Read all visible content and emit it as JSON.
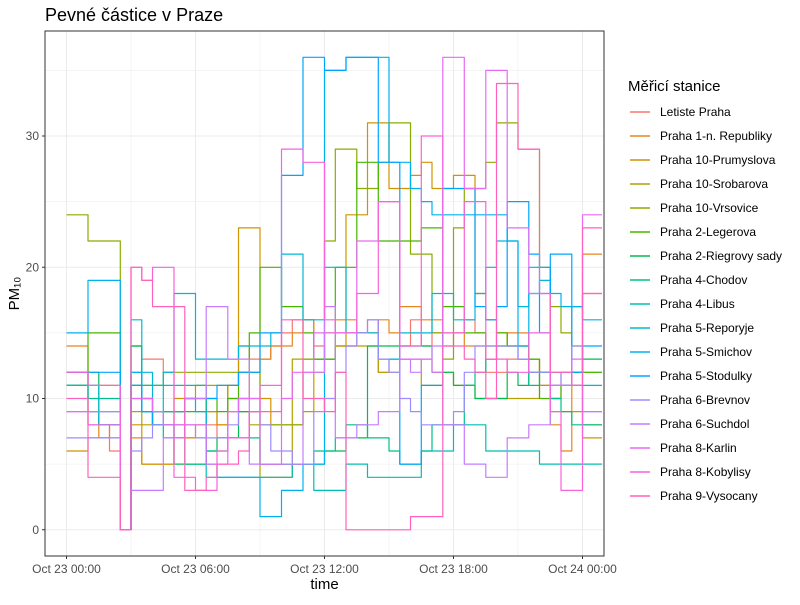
{
  "chart_data": {
    "type": "line",
    "title": "Pevné částice v Praze",
    "xlabel": "time",
    "ylabel": "PM₁₀",
    "legend_title": "Měřicí stanice",
    "legend_position": "right",
    "grid": true,
    "x_range": [
      "2020-10-22 23:00",
      "2020-10-24 01:00"
    ],
    "ylim": [
      -2,
      38
    ],
    "y_ticks": [
      0,
      10,
      20,
      30
    ],
    "x_ticks": [
      {
        "value": "2020-10-23 00:00",
        "label": "Oct 23 00:00"
      },
      {
        "value": "2020-10-23 06:00",
        "label": "Oct 23 06:00"
      },
      {
        "value": "2020-10-23 12:00",
        "label": "Oct 23 12:00"
      },
      {
        "value": "2020-10-23 18:00",
        "label": "Oct 23 18:00"
      },
      {
        "value": "2020-10-24 00:00",
        "label": "Oct 24 00:00"
      }
    ],
    "x": [
      "2020-10-23 00:00",
      "2020-10-23 00:30",
      "2020-10-23 01:00",
      "2020-10-23 01:30",
      "2020-10-23 02:00",
      "2020-10-23 02:30",
      "2020-10-23 03:00",
      "2020-10-23 03:30",
      "2020-10-23 04:00",
      "2020-10-23 04:30",
      "2020-10-23 05:00",
      "2020-10-23 05:30",
      "2020-10-23 06:00",
      "2020-10-23 06:30",
      "2020-10-23 07:00",
      "2020-10-23 07:30",
      "2020-10-23 08:00",
      "2020-10-23 08:30",
      "2020-10-23 09:00",
      "2020-10-23 09:30",
      "2020-10-23 10:00",
      "2020-10-23 10:30",
      "2020-10-23 11:00",
      "2020-10-23 11:30",
      "2020-10-23 12:00",
      "2020-10-23 12:30",
      "2020-10-23 13:00",
      "2020-10-23 13:30",
      "2020-10-23 14:00",
      "2020-10-23 14:30",
      "2020-10-23 15:00",
      "2020-10-23 15:30",
      "2020-10-23 16:00",
      "2020-10-23 16:30",
      "2020-10-23 17:00",
      "2020-10-23 17:30",
      "2020-10-23 18:00",
      "2020-10-23 18:30",
      "2020-10-23 19:00",
      "2020-10-23 19:30",
      "2020-10-23 20:00",
      "2020-10-23 20:30",
      "2020-10-23 21:00",
      "2020-10-23 21:30",
      "2020-10-23 22:00",
      "2020-10-23 22:30",
      "2020-10-23 23:00",
      "2020-10-23 23:30",
      "2020-10-24 00:00",
      "2020-10-24 00:30"
    ],
    "series": [
      {
        "name": "Letiste Praha",
        "color": "#F8766D",
        "values": [
          12,
          12,
          8,
          8,
          6,
          0,
          10,
          13,
          13,
          12,
          8,
          7,
          7,
          8,
          7,
          11,
          14,
          13,
          13,
          14,
          15,
          16,
          16,
          14,
          13,
          14,
          14,
          15,
          16,
          12,
          13,
          14,
          16,
          14,
          15,
          14,
          15,
          16,
          15,
          12,
          12,
          13,
          13,
          12,
          11,
          10,
          12,
          17,
          18,
          18
        ]
      },
      {
        "name": "Praha 1-n. Republiky",
        "color": "#E7851E",
        "values": [
          14,
          14,
          9,
          7,
          8,
          0,
          7,
          5,
          5,
          5,
          7,
          7,
          8,
          9,
          8,
          9,
          10,
          12,
          13,
          14,
          14,
          15,
          16,
          13,
          15,
          16,
          16,
          15,
          15,
          16,
          15,
          17,
          17,
          16,
          16,
          15,
          15,
          14,
          14,
          13,
          14,
          15,
          15,
          13,
          12,
          8,
          6,
          12,
          21,
          21
        ]
      },
      {
        "name": "Praha 10-Prumyslova",
        "color": "#D09400",
        "values": [
          6,
          6,
          7,
          7,
          7,
          0,
          8,
          5,
          5,
          5,
          10,
          10,
          10,
          9,
          8,
          11,
          23,
          23,
          10,
          8,
          8,
          8,
          9,
          12,
          13,
          14,
          24,
          24,
          31,
          31,
          26,
          26,
          27,
          28,
          26,
          26,
          27,
          27,
          18,
          16,
          15,
          14,
          14,
          13,
          12,
          9,
          9,
          9,
          7,
          7
        ]
      },
      {
        "name": "Praha 10-Srobarova",
        "color": "#B2A100",
        "values": [
          11,
          11,
          11,
          11,
          11,
          0,
          9,
          8,
          9,
          9,
          9,
          10,
          11,
          11,
          11,
          10,
          9,
          8,
          4,
          4,
          4,
          13,
          13,
          13,
          13,
          14,
          14,
          14,
          14,
          12,
          12,
          13,
          13,
          11,
          11,
          12,
          11,
          11,
          10,
          10,
          10,
          10,
          10,
          10,
          11,
          11,
          11,
          11,
          8,
          8
        ]
      },
      {
        "name": "Praha 10-Vrsovice",
        "color": "#89AC00",
        "values": [
          24,
          24,
          22,
          22,
          22,
          0,
          11,
          11,
          11,
          12,
          12,
          12,
          12,
          12,
          12,
          12,
          12,
          12,
          8,
          8,
          8,
          8,
          13,
          13,
          22,
          29,
          29,
          26,
          26,
          28,
          31,
          31,
          21,
          21,
          15,
          13,
          23,
          26,
          26,
          28,
          31,
          31,
          29,
          29,
          20,
          17,
          15,
          14,
          12,
          12
        ]
      },
      {
        "name": "Praha 2-Legerova",
        "color": "#45B500",
        "values": [
          11,
          11,
          15,
          15,
          15,
          0,
          14,
          10,
          9,
          9,
          9,
          9,
          9,
          10,
          9,
          10,
          12,
          15,
          20,
          20,
          17,
          17,
          15,
          13,
          13,
          20,
          20,
          28,
          28,
          22,
          22,
          22,
          22,
          23,
          23,
          17,
          17,
          15,
          15,
          14,
          15,
          14,
          14,
          13,
          10,
          10,
          11,
          12,
          12,
          12
        ]
      },
      {
        "name": "Praha 2-Riegrovy sady",
        "color": "#00BC51",
        "values": [
          12,
          12,
          12,
          8,
          8,
          0,
          14,
          10,
          8,
          8,
          5,
          5,
          5,
          6,
          7,
          7,
          9,
          9,
          5,
          5,
          5,
          5,
          5,
          5,
          6,
          6,
          7,
          7,
          14,
          14,
          14,
          14,
          14,
          14,
          12,
          12,
          11,
          11,
          10,
          10,
          10,
          12,
          11,
          12,
          12,
          12,
          12,
          12,
          13,
          13
        ]
      },
      {
        "name": "Praha 4-Chodov",
        "color": "#00C087",
        "values": [
          11,
          11,
          10,
          10,
          10,
          0,
          11,
          9,
          8,
          7,
          7,
          5,
          5,
          6,
          6,
          7,
          7,
          7,
          5,
          5,
          5,
          5,
          5,
          6,
          6,
          7,
          8,
          8,
          7,
          7,
          6,
          5,
          5,
          6,
          8,
          8,
          8,
          11,
          12,
          13,
          14,
          14,
          13,
          11,
          12,
          10,
          9,
          8,
          8,
          8
        ]
      },
      {
        "name": "Praha 4-Libus",
        "color": "#00BEB3",
        "values": [
          12,
          12,
          9,
          9,
          9,
          0,
          12,
          11,
          11,
          11,
          11,
          11,
          11,
          4,
          4,
          4,
          4,
          4,
          4,
          4,
          4,
          5,
          5,
          3,
          3,
          3,
          5,
          5,
          4,
          4,
          4,
          4,
          4,
          6,
          6,
          6,
          8,
          8,
          8,
          6,
          6,
          6,
          6,
          6,
          5,
          5,
          5,
          5,
          5,
          5
        ]
      },
      {
        "name": "Praha 5-Reporyje",
        "color": "#00B8D5",
        "values": [
          11,
          11,
          11,
          8,
          8,
          0,
          16,
          12,
          8,
          12,
          18,
          18,
          13,
          13,
          13,
          13,
          14,
          14,
          14,
          15,
          21,
          21,
          16,
          16,
          20,
          20,
          15,
          15,
          15,
          13,
          13,
          15,
          15,
          15,
          18,
          18,
          16,
          16,
          18,
          20,
          22,
          22,
          17,
          18,
          19,
          11,
          11,
          11,
          11,
          11
        ]
      },
      {
        "name": "Praha 5-Smichov",
        "color": "#00B1F0",
        "values": [
          15,
          15,
          19,
          19,
          19,
          0,
          12,
          9,
          9,
          9,
          9,
          10,
          9,
          5,
          4,
          4,
          4,
          4,
          1,
          1,
          3,
          3,
          5,
          5,
          35,
          35,
          36,
          36,
          36,
          36,
          28,
          28,
          26,
          25,
          24,
          24,
          24,
          24,
          24,
          24,
          24,
          22,
          14,
          20,
          20,
          18,
          17,
          17,
          16,
          16
        ]
      },
      {
        "name": "Praha 5-Stodulky",
        "color": "#00A5FF",
        "values": [
          12,
          12,
          12,
          12,
          12,
          0,
          11,
          9,
          8,
          8,
          7,
          10,
          10,
          10,
          11,
          11,
          12,
          12,
          15,
          15,
          27,
          27,
          36,
          36,
          35,
          35,
          36,
          36,
          36,
          28,
          28,
          5,
          5,
          11,
          11,
          26,
          26,
          26,
          17,
          16,
          17,
          25,
          25,
          21,
          15,
          21,
          21,
          12,
          14,
          14
        ]
      },
      {
        "name": "Praha 6-Brevnov",
        "color": "#9B8DFF",
        "values": [
          7,
          7,
          7,
          7,
          7,
          0,
          6,
          7,
          8,
          8,
          8,
          8,
          7,
          7,
          7,
          8,
          10,
          10,
          8,
          6,
          6,
          5,
          5,
          9,
          10,
          12,
          14,
          15,
          16,
          13,
          12,
          10,
          9,
          8,
          8,
          8,
          9,
          12,
          14,
          14,
          14,
          14,
          13,
          12,
          12,
          11,
          12,
          14,
          9,
          9
        ]
      },
      {
        "name": "Praha 6-Suchdol",
        "color": "#C77CFF",
        "values": [
          9,
          9,
          9,
          9,
          9,
          0,
          3,
          3,
          3,
          7,
          7,
          10,
          10,
          17,
          17,
          13,
          13,
          5,
          5,
          5,
          5,
          5,
          12,
          12,
          17,
          7,
          7,
          8,
          8,
          9,
          9,
          13,
          12,
          13,
          14,
          8,
          8,
          5,
          5,
          4,
          4,
          7,
          7,
          8,
          8,
          11,
          11,
          11,
          9,
          9
        ]
      },
      {
        "name": "Praha 8-Karlin",
        "color": "#E76BF3",
        "values": [
          9,
          9,
          8,
          8,
          8,
          0,
          10,
          10,
          9,
          8,
          8,
          8,
          8,
          5,
          5,
          9,
          10,
          10,
          5,
          5,
          10,
          12,
          12,
          15,
          15,
          15,
          15,
          22,
          22,
          25,
          25,
          13,
          13,
          13,
          12,
          36,
          36,
          26,
          26,
          35,
          35,
          23,
          23,
          18,
          18,
          11,
          11,
          13,
          24,
          24
        ]
      },
      {
        "name": "Praha 8-Kobylisy",
        "color": "#F962DD",
        "values": [
          12,
          12,
          11,
          11,
          11,
          0,
          20,
          19,
          20,
          20,
          4,
          4,
          3,
          3,
          6,
          7,
          7,
          9,
          11,
          11,
          29,
          29,
          28,
          28,
          16,
          15,
          15,
          18,
          18,
          25,
          25,
          14,
          14,
          30,
          30,
          15,
          15,
          25,
          25,
          13,
          13,
          12,
          12,
          15,
          15,
          9,
          3,
          3,
          18,
          18
        ]
      },
      {
        "name": "Praha 9-Vysocany",
        "color": "#FF62BC",
        "values": [
          10,
          10,
          4,
          4,
          4,
          0,
          20,
          19,
          17,
          17,
          17,
          3,
          3,
          4,
          5,
          5,
          6,
          9,
          9,
          9,
          16,
          16,
          10,
          10,
          9,
          12,
          0,
          0,
          0,
          0,
          0,
          0,
          1,
          1,
          1,
          14,
          14,
          13,
          12,
          10,
          34,
          34,
          29,
          29,
          18,
          12,
          12,
          11,
          23,
          23
        ]
      }
    ]
  }
}
